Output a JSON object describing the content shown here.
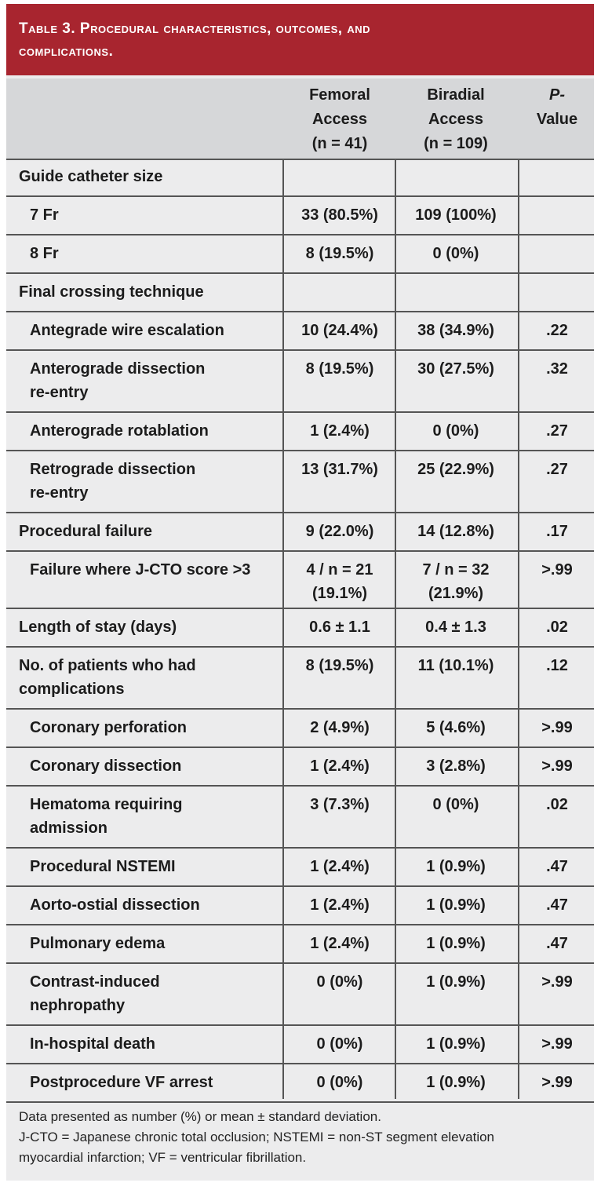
{
  "title": {
    "line1": "Table 3. Procedural characteristics, outcomes, and",
    "line2": "complications."
  },
  "columns": {
    "femoral": [
      "Femoral",
      "Access",
      "(n = 41)"
    ],
    "biradial": [
      "Biradial",
      "Access",
      "(n = 109)"
    ],
    "pvalue": [
      "P-",
      "Value"
    ]
  },
  "rows": [
    {
      "label": [
        "Guide catheter size"
      ],
      "femoral": [],
      "biradial": [],
      "p": ""
    },
    {
      "label": [
        "7 Fr"
      ],
      "femoral": [
        "33 (80.5%)"
      ],
      "biradial": [
        "109 (100%)"
      ],
      "p": ""
    },
    {
      "label": [
        "8 Fr"
      ],
      "femoral": [
        "8 (19.5%)"
      ],
      "biradial": [
        "0 (0%)"
      ],
      "p": ""
    },
    {
      "label": [
        "Final crossing technique"
      ],
      "femoral": [],
      "biradial": [],
      "p": ""
    },
    {
      "label": [
        "Antegrade wire escalation"
      ],
      "femoral": [
        "10 (24.4%)"
      ],
      "biradial": [
        "38 (34.9%)"
      ],
      "p": ".22"
    },
    {
      "label": [
        "Anterograde dissection",
        "re-entry"
      ],
      "femoral": [
        "8 (19.5%)"
      ],
      "biradial": [
        "30 (27.5%)"
      ],
      "p": ".32"
    },
    {
      "label": [
        "Anterograde rotablation"
      ],
      "femoral": [
        "1 (2.4%)"
      ],
      "biradial": [
        "0 (0%)"
      ],
      "p": ".27"
    },
    {
      "label": [
        "Retrograde dissection",
        "re-entry"
      ],
      "femoral": [
        "13 (31.7%)"
      ],
      "biradial": [
        "25 (22.9%)"
      ],
      "p": ".27"
    },
    {
      "label": [
        "Procedural failure"
      ],
      "femoral": [
        "9 (22.0%)"
      ],
      "biradial": [
        "14 (12.8%)"
      ],
      "p": ".17"
    },
    {
      "label": [
        "Failure where J-CTO score >3"
      ],
      "femoral": [
        "4 / n = 21",
        "(19.1%)"
      ],
      "biradial": [
        "7 / n = 32",
        "(21.9%)"
      ],
      "p": ">.99"
    },
    {
      "label": [
        "Length of stay (days)"
      ],
      "femoral": [
        "0.6 ± 1.1"
      ],
      "biradial": [
        "0.4 ± 1.3"
      ],
      "p": ".02"
    },
    {
      "label": [
        "No. of patients who had",
        "complications"
      ],
      "femoral": [
        "8 (19.5%)"
      ],
      "biradial": [
        "11 (10.1%)"
      ],
      "p": ".12"
    },
    {
      "label": [
        "Coronary perforation"
      ],
      "femoral": [
        "2 (4.9%)"
      ],
      "biradial": [
        "5 (4.6%)"
      ],
      "p": ">.99"
    },
    {
      "label": [
        "Coronary dissection"
      ],
      "femoral": [
        "1 (2.4%)"
      ],
      "biradial": [
        "3 (2.8%)"
      ],
      "p": ">.99"
    },
    {
      "label": [
        "Hematoma requiring",
        "admission"
      ],
      "femoral": [
        "3 (7.3%)"
      ],
      "biradial": [
        "0 (0%)"
      ],
      "p": ".02"
    },
    {
      "label": [
        "Procedural NSTEMI"
      ],
      "femoral": [
        "1 (2.4%)"
      ],
      "biradial": [
        "1 (0.9%)"
      ],
      "p": ".47"
    },
    {
      "label": [
        "Aorto-ostial dissection"
      ],
      "femoral": [
        "1 (2.4%)"
      ],
      "biradial": [
        "1 (0.9%)"
      ],
      "p": ".47"
    },
    {
      "label": [
        "Pulmonary edema"
      ],
      "femoral": [
        "1 (2.4%)"
      ],
      "biradial": [
        "1 (0.9%)"
      ],
      "p": ".47"
    },
    {
      "label": [
        "Contrast-induced",
        "nephropathy"
      ],
      "femoral": [
        "0 (0%)"
      ],
      "biradial": [
        "1 (0.9%)"
      ],
      "p": ">.99"
    },
    {
      "label": [
        "In-hospital death"
      ],
      "femoral": [
        "0 (0%)"
      ],
      "biradial": [
        "1 (0.9%)"
      ],
      "p": ">.99"
    },
    {
      "label": [
        "Postprocedure VF arrest"
      ],
      "femoral": [
        "0 (0%)"
      ],
      "biradial": [
        "1 (0.9%)"
      ],
      "p": ">.99"
    }
  ],
  "footnotes": [
    "Data presented as number (%) or mean ± standard deviation.",
    "J-CTO = Japanese chronic total occlusion; NSTEMI = non-ST segment elevation",
    "myocardial infarction; VF = ventricular fibrillation."
  ]
}
